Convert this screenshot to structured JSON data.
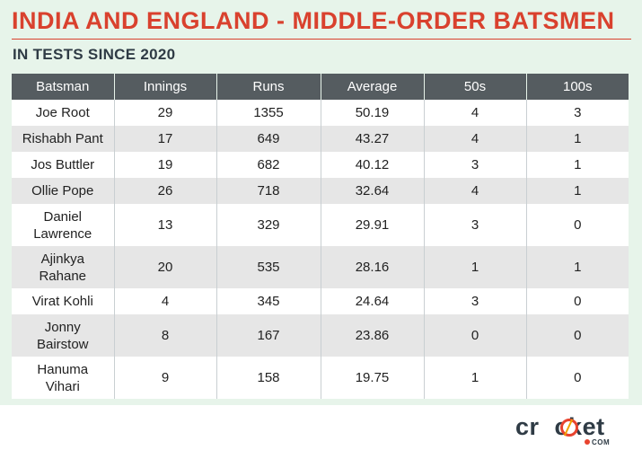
{
  "title": "INDIA AND ENGLAND - MIDDLE-ORDER BATSMEN",
  "subtitle": "IN TESTS SINCE 2020",
  "logo": {
    "word_pre": "cr",
    "word_post": "cket",
    "suffix": "COM",
    "accent": "#e8432e"
  },
  "colors": {
    "title": "#d9412e",
    "header_bg": "#555c60",
    "panel_bg": "#e7f4ea",
    "row_alt": "#e6e6e6"
  },
  "chart_data": {
    "type": "table",
    "columns": [
      "Batsman",
      "Innings",
      "Runs",
      "Average",
      "50s",
      "100s"
    ],
    "rows": [
      {
        "batsman": "Joe Root",
        "innings": "29",
        "runs": "1355",
        "average": "50.19",
        "fifties": "4",
        "hundreds": "3"
      },
      {
        "batsman": "Rishabh Pant",
        "innings": "17",
        "runs": "649",
        "average": "43.27",
        "fifties": "4",
        "hundreds": "1"
      },
      {
        "batsman": "Jos Buttler",
        "innings": "19",
        "runs": "682",
        "average": "40.12",
        "fifties": "3",
        "hundreds": "1"
      },
      {
        "batsman": "Ollie Pope",
        "innings": "26",
        "runs": "718",
        "average": "32.64",
        "fifties": "4",
        "hundreds": "1"
      },
      {
        "batsman": "Daniel Lawrence",
        "innings": "13",
        "runs": "329",
        "average": "29.91",
        "fifties": "3",
        "hundreds": "0"
      },
      {
        "batsman": "Ajinkya Rahane",
        "innings": "20",
        "runs": "535",
        "average": "28.16",
        "fifties": "1",
        "hundreds": "1"
      },
      {
        "batsman": "Virat Kohli",
        "innings": "4",
        "runs": "345",
        "average": "24.64",
        "fifties": "3",
        "hundreds": "0"
      },
      {
        "batsman": "Jonny Bairstow",
        "innings": "8",
        "runs": "167",
        "average": "23.86",
        "fifties": "0",
        "hundreds": "0"
      },
      {
        "batsman": "Hanuma Vihari",
        "innings": "9",
        "runs": "158",
        "average": "19.75",
        "fifties": "1",
        "hundreds": "0"
      }
    ]
  }
}
